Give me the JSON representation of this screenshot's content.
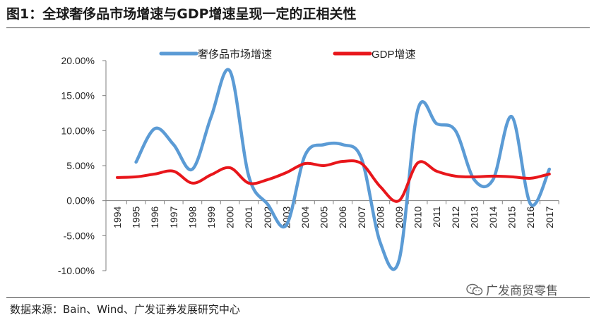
{
  "header": {
    "title": "图1：全球奢侈品市场增速与GDP增速呈现一定的正相关性"
  },
  "footer": {
    "source": "数据来源：Bain、Wind、广发证券发展研究中心",
    "watermark": "广发商贸零售",
    "watermark_icon": "wechat-icon"
  },
  "chart_data": {
    "type": "line",
    "title": "",
    "xlabel": "",
    "ylabel": "",
    "x": [
      "1994",
      "1995",
      "1996",
      "1997",
      "1998",
      "1999",
      "2000",
      "2001",
      "2002",
      "2003",
      "2004",
      "2005",
      "2006",
      "2007",
      "2008",
      "2009",
      "2010",
      "2011",
      "2012",
      "2013",
      "2014",
      "2015",
      "2016",
      "2017"
    ],
    "ylim": [
      -10,
      20
    ],
    "yticks": [
      20,
      15,
      10,
      5,
      0,
      -5,
      -10
    ],
    "ytick_labels": [
      "20.00%",
      "15.00%",
      "10.00%",
      "5.00%",
      "0.00%",
      "-5.00%",
      "-10.00%"
    ],
    "grid": false,
    "legend_position": "top",
    "series": [
      {
        "name": "奢侈品市场增速",
        "color": "#5b9bd5",
        "values": [
          null,
          5.5,
          10.3,
          8.0,
          4.5,
          12.0,
          18.5,
          3.5,
          -0.5,
          -3.5,
          6.5,
          8.0,
          8.0,
          6.0,
          -6.0,
          -8.5,
          13.0,
          11.0,
          10.0,
          3.0,
          3.0,
          12.0,
          -0.5,
          4.5
        ]
      },
      {
        "name": "GDP增速",
        "color": "#e8161b",
        "values": [
          3.3,
          3.4,
          3.8,
          4.2,
          2.5,
          3.7,
          4.7,
          2.5,
          3.0,
          4.0,
          5.3,
          5.0,
          5.6,
          5.3,
          2.0,
          0.0,
          5.4,
          4.2,
          3.5,
          3.4,
          3.5,
          3.4,
          3.2,
          3.8
        ]
      }
    ]
  }
}
